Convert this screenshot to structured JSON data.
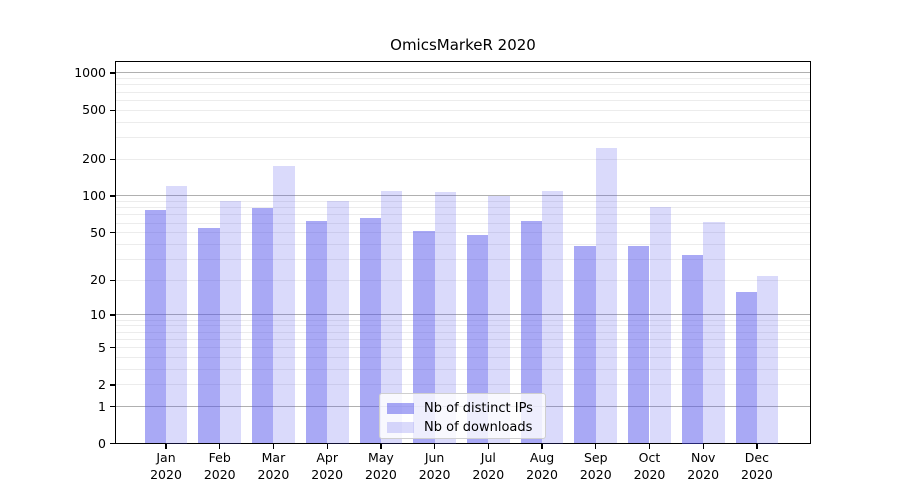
{
  "chart_data": {
    "type": "bar",
    "title": "OmicsMarkeR 2020",
    "categories": [
      "Jan",
      "Feb",
      "Mar",
      "Apr",
      "May",
      "Jun",
      "Jul",
      "Aug",
      "Sep",
      "Oct",
      "Nov",
      "Dec"
    ],
    "year_label": "2020",
    "series": [
      {
        "name": "Nb of distinct IPs",
        "color": "rgba(80,80,235,0.49)",
        "values": [
          77,
          55,
          80,
          62,
          66,
          52,
          48,
          62,
          39,
          39,
          33,
          16
        ]
      },
      {
        "name": "Nb of downloads",
        "color": "rgba(80,80,235,0.21)",
        "values": [
          122,
          92,
          175,
          92,
          110,
          108,
          100,
          110,
          245,
          82,
          61,
          22
        ]
      }
    ],
    "y_ticks": [
      0,
      1,
      2,
      5,
      10,
      20,
      50,
      100,
      200,
      500,
      1000
    ],
    "scale": "log1p",
    "ylim": [
      0,
      1200
    ],
    "grid": "on",
    "legend_position": "lower-center"
  },
  "colors": {
    "grid_major": "#b0b0b0",
    "grid_minor": "#ececec",
    "spine": "#000000",
    "legend_border": "#cfcfcf"
  }
}
